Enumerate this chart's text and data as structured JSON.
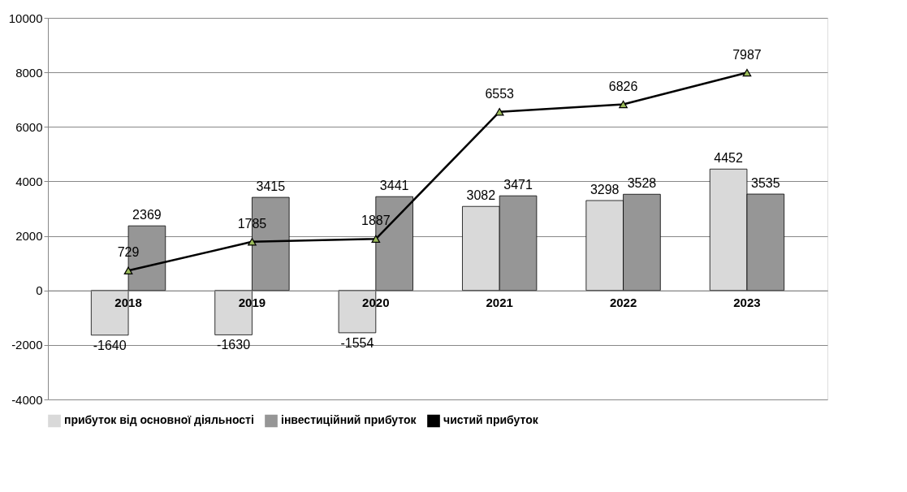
{
  "chart_data": {
    "type": "bar",
    "categories": [
      "2018",
      "2019",
      "2020",
      "2021",
      "2022",
      "2023"
    ],
    "series": [
      {
        "name": "прибуток від основної діяльності",
        "color": "#d9d9d9",
        "values": [
          -1640,
          -1630,
          -1554,
          3082,
          3298,
          4452
        ]
      },
      {
        "name": "інвестиційний прибуток",
        "color": "#969696",
        "values": [
          2369,
          3415,
          3441,
          3471,
          3528,
          3535
        ]
      },
      {
        "name": "чистий прибуток",
        "color": "#000000",
        "type": "line",
        "values": [
          729,
          1785,
          1887,
          6553,
          6826,
          7987
        ]
      }
    ],
    "ylim": [
      -4000,
      10000
    ],
    "yticks": [
      -4000,
      -2000,
      0,
      2000,
      4000,
      6000,
      8000,
      10000
    ],
    "grid": "y",
    "legend": "bottom",
    "data_labels": true,
    "marker": "triangle",
    "line_style": "solid"
  }
}
